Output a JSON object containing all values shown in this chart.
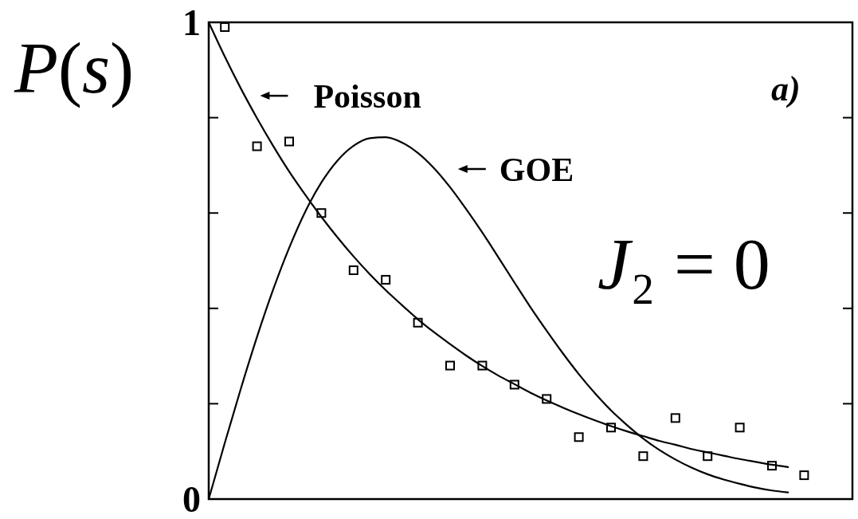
{
  "chart_data": {
    "type": "line",
    "ylabel": "P(s)",
    "annotations": [
      "a)",
      "J₂ = 0"
    ],
    "legend": "top",
    "categories": [
      null,
      null,
      null,
      null,
      null,
      null,
      null,
      null,
      null,
      null,
      null,
      null,
      null,
      null,
      null,
      null,
      null,
      null,
      null,
      null,
      null,
      null,
      null,
      null,
      null,
      null,
      null,
      null,
      null,
      null,
      null,
      null,
      null,
      null,
      null,
      null,
      null,
      null,
      null,
      null,
      null
    ],
    "ylim": [
      0,
      1
    ],
    "yticks": [
      0,
      {
        "value": 0.2,
        "label": null
      },
      {
        "value": 0.4,
        "label": null
      },
      {
        "value": 0.6,
        "label": null
      },
      {
        "value": 0.8,
        "label": null
      },
      1
    ],
    "series": [
      {
        "name": "Poisson",
        "color": "#000000",
        "values": [
          1,
          0.928,
          0.861,
          0.799,
          0.741,
          0.687,
          0.638,
          0.592,
          0.549,
          0.509,
          0.472,
          0.438,
          0.407,
          0.377,
          0.35,
          0.325,
          0.301,
          0.279,
          0.259,
          0.241,
          0.223,
          0.207,
          0.192,
          0.178,
          0.165,
          0.153,
          0.142,
          0.132,
          0.122,
          0.114,
          0.105,
          0.098,
          0.091,
          0.084,
          0.078,
          0.072,
          0.067,
          null,
          null,
          null,
          null
        ]
      },
      {
        "name": "GOE",
        "color": "#000000",
        "values": [
          0,
          0.118,
          0.232,
          0.34,
          0.439,
          0.527,
          0.603,
          0.664,
          0.71,
          0.741,
          0.757,
          0.759,
          0.748,
          0.726,
          0.694,
          0.654,
          0.608,
          0.559,
          0.507,
          0.454,
          0.402,
          0.353,
          0.306,
          0.262,
          0.222,
          0.186,
          0.155,
          0.127,
          0.103,
          0.083,
          0.066,
          0.052,
          0.041,
          0.032,
          0.024,
          0.018,
          0.014,
          null,
          null,
          null,
          null
        ]
      },
      {
        "type": "scatter",
        "color": "#000000",
        "marker": "square",
        "values": [
          null,
          0.99,
          null,
          0.74,
          null,
          0.75,
          null,
          0.6,
          null,
          0.48,
          null,
          0.46,
          null,
          0.37,
          null,
          0.28,
          null,
          0.28,
          null,
          0.24,
          null,
          0.21,
          null,
          0.13,
          null,
          0.15,
          null,
          0.09,
          null,
          0.17,
          null,
          0.09,
          null,
          0.15,
          null,
          0.07,
          null,
          0.05,
          null,
          null,
          null
        ]
      }
    ]
  }
}
